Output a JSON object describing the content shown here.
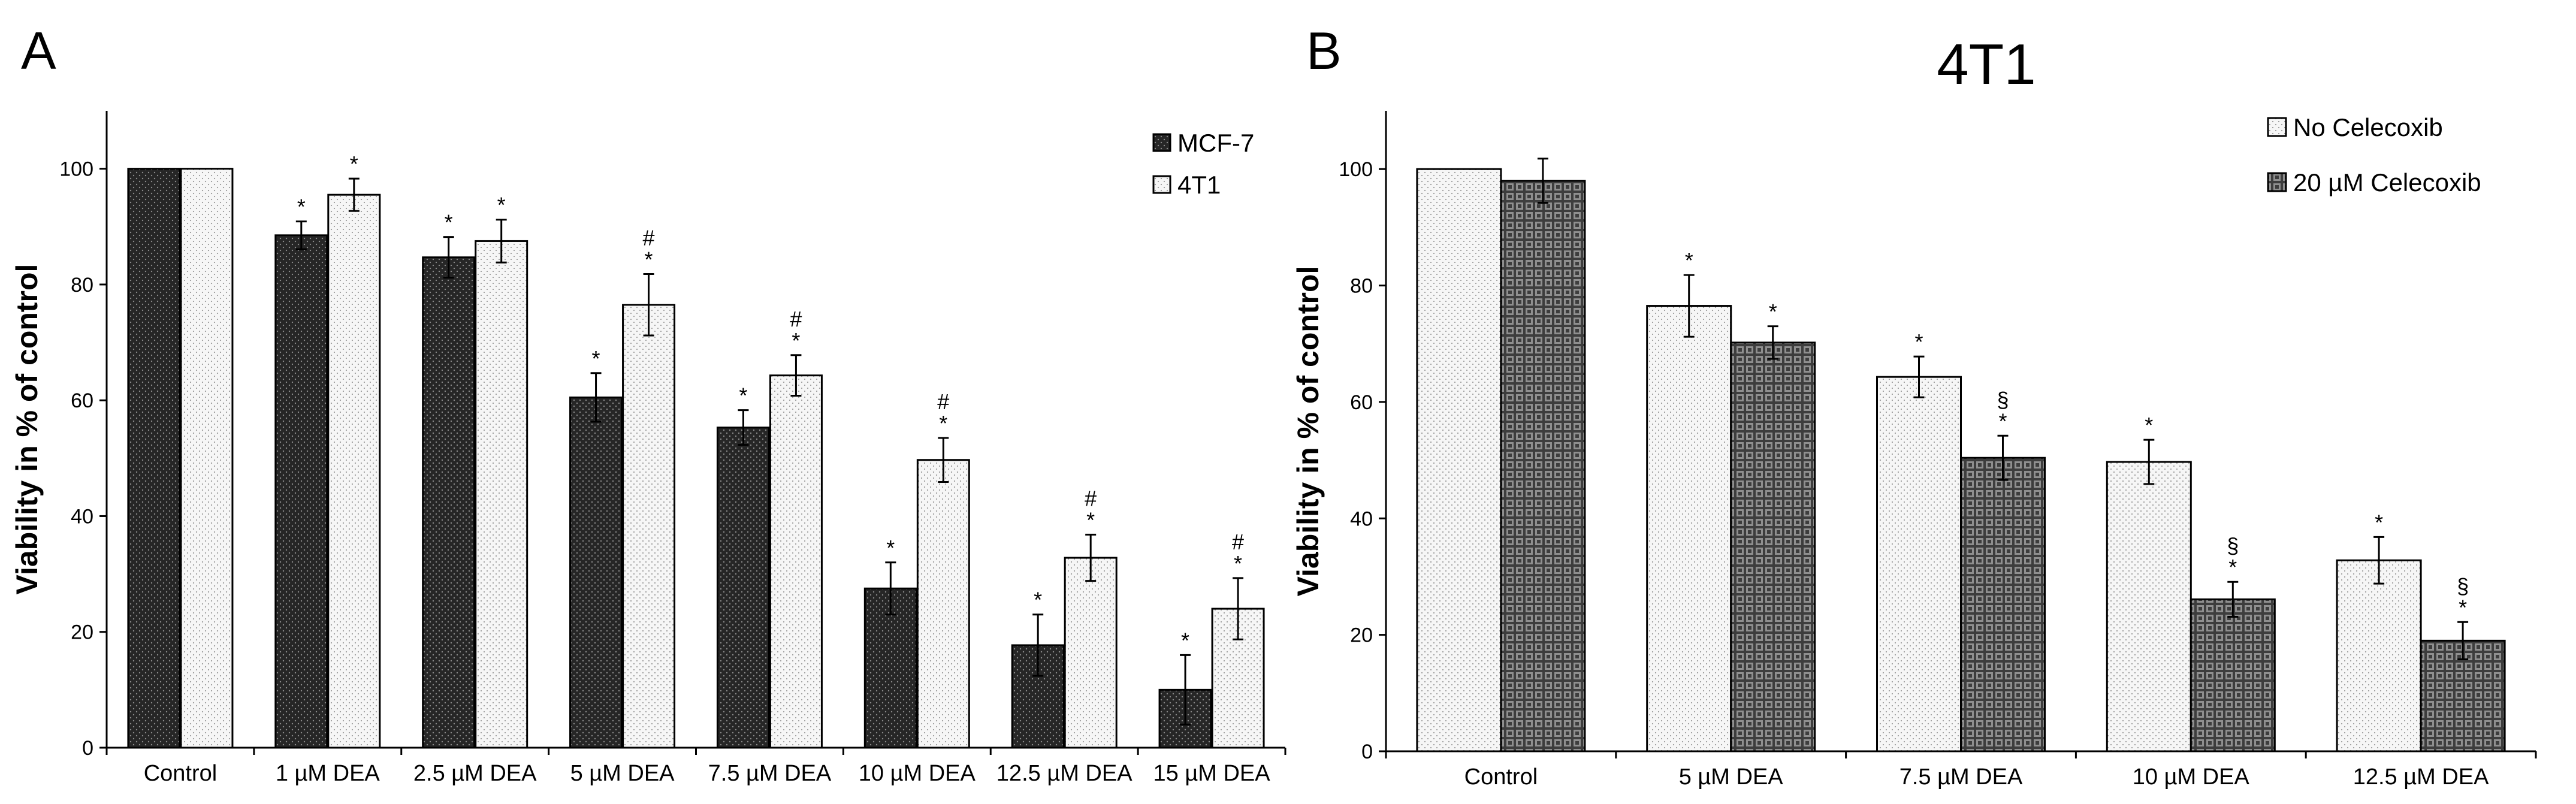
{
  "chart_data": [
    {
      "type": "bar",
      "panel": "A",
      "title": "",
      "xlabel": "",
      "ylabel": "Viability in % of control",
      "ylim": [
        0,
        110
      ],
      "yticks": [
        0,
        20,
        40,
        60,
        80,
        100
      ],
      "legend_position": "top-right",
      "categories": [
        "Control",
        "1 µM DEA",
        "2.5 µM DEA",
        "5 µM DEA",
        "7.5 µM DEA",
        "10 µM DEA",
        "12.5 µM DEA",
        "15 µM DEA"
      ],
      "series": [
        {
          "name": "MCF-7",
          "color": "#262626",
          "pattern": "dark-dots",
          "values": [
            100,
            88.5,
            84.7,
            60.5,
            55.3,
            27.5,
            17.7,
            10.0
          ],
          "errors": [
            0,
            2.4,
            3.5,
            4.2,
            3.0,
            4.5,
            5.3,
            6.0
          ],
          "annotations": [
            "",
            "*",
            "*",
            "*",
            "*",
            "*",
            "*",
            "*"
          ]
        },
        {
          "name": "4T1",
          "color": "#f4f4f4",
          "pattern": "light-dots",
          "values": [
            100,
            95.5,
            87.5,
            76.5,
            64.3,
            49.7,
            32.8,
            24.0
          ],
          "errors": [
            0,
            2.8,
            3.7,
            5.3,
            3.5,
            3.8,
            4.0,
            5.3
          ],
          "annotations": [
            "",
            "*",
            "*",
            "#\n*",
            "#\n*",
            "#\n*",
            "#\n*",
            "#\n*"
          ]
        }
      ]
    },
    {
      "type": "bar",
      "panel": "B",
      "title": "4T1",
      "xlabel": "",
      "ylabel": "Viability in % of control",
      "ylim": [
        0,
        110
      ],
      "yticks": [
        0,
        20,
        40,
        60,
        80,
        100
      ],
      "legend_position": "top-right",
      "categories": [
        "Control",
        "5 µM DEA",
        "7.5 µM DEA",
        "10 µM DEA",
        "12.5 µM DEA"
      ],
      "series": [
        {
          "name": "No Celecoxib",
          "color": "#f4f4f4",
          "pattern": "light-dots",
          "values": [
            100,
            76.5,
            64.3,
            49.7,
            32.8
          ],
          "errors": [
            0,
            5.3,
            3.5,
            3.8,
            4.0
          ],
          "annotations": [
            "",
            "*",
            "*",
            "*",
            "*"
          ]
        },
        {
          "name": "20 µM Celecoxib",
          "color": "#6d6d6d",
          "pattern": "checker",
          "values": [
            98.0,
            70.2,
            50.4,
            26.1,
            19.0
          ],
          "errors": [
            3.8,
            2.8,
            3.8,
            3.0,
            3.2
          ],
          "annotations": [
            "",
            "*",
            "§\n*",
            "§\n*",
            "§\n*"
          ]
        }
      ]
    }
  ]
}
